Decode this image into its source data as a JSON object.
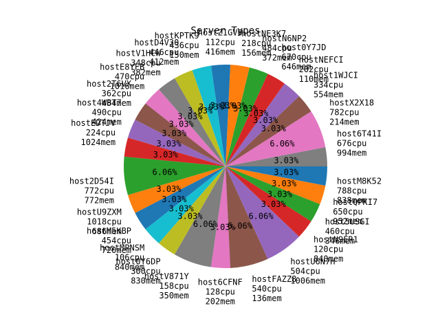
{
  "chart_data": {
    "type": "pie",
    "title": "Server Types",
    "start_angle_deg": 0,
    "direction": "counterclockwise",
    "slices": [
      {
        "label": "host6T41I",
        "cpu": "676cpu",
        "mem": "994mem",
        "pct": "3.03%",
        "value": 1,
        "color": "#7f7f7f"
      },
      {
        "label": "hostX2X18",
        "cpu": "782cpu",
        "mem": "214mem",
        "pct": "6.06%",
        "value": 2,
        "color": "#e377c2"
      },
      {
        "label": "host1WJCI",
        "cpu": "334cpu",
        "mem": "554mem",
        "pct": "3.03%",
        "value": 1,
        "color": "#8c564b"
      },
      {
        "label": "hostNEFCI",
        "cpu": "202cpu",
        "mem": "110mem",
        "pct": "3.03%",
        "value": 1,
        "color": "#9467bd"
      },
      {
        "label": "host0Y7JD",
        "cpu": "670cpu",
        "mem": "646mem",
        "pct": "3.03%",
        "value": 1,
        "color": "#d62728"
      },
      {
        "label": "hostN6NP2",
        "cpu": "484cpu",
        "mem": "372mem",
        "pct": "3.03%",
        "value": 1,
        "color": "#2ca02c"
      },
      {
        "label": "hostNE3K7",
        "cpu": "218cpu",
        "mem": "156mem",
        "pct": "3.03%",
        "value": 1,
        "color": "#ff7f0e"
      },
      {
        "label": "hostZ1GV0",
        "cpu": "112cpu",
        "mem": "416mem",
        "pct": "3.03%",
        "value": 1,
        "color": "#1f77b4"
      },
      {
        "label": "hostKPTK9",
        "cpu": "436cpu",
        "mem": "150mem",
        "pct": "3.03%",
        "value": 1,
        "color": "#17becf"
      },
      {
        "label": "hostD4V30",
        "cpu": "446cpu",
        "mem": "412mem",
        "pct": "3.03%",
        "value": 1,
        "color": "#bcbd22"
      },
      {
        "label": "hostV1HCW",
        "cpu": "348cpu",
        "mem": "382mem",
        "pct": "3.03%",
        "value": 1,
        "color": "#7f7f7f"
      },
      {
        "label": "hostE8YFB",
        "cpu": "470cpu",
        "mem": "1016mem",
        "pct": "3.03%",
        "value": 1,
        "color": "#e377c2"
      },
      {
        "label": "host2T6VX",
        "cpu": "362cpu",
        "mem": "484mem",
        "pct": "3.03%",
        "value": 1,
        "color": "#8c564b"
      },
      {
        "label": "host4WBT7",
        "cpu": "490cpu",
        "mem": "424mem",
        "pct": "3.03%",
        "value": 1,
        "color": "#9467bd"
      },
      {
        "label": "hostEDTJV",
        "cpu": "224cpu",
        "mem": "1024mem",
        "pct": "3.03%",
        "value": 1,
        "color": "#d62728"
      },
      {
        "label": "host2D54I",
        "cpu": "772cpu",
        "mem": "772mem",
        "pct": "6.06%",
        "value": 2,
        "color": "#2ca02c"
      },
      {
        "label": "hostU9ZXM",
        "cpu": "1018cpu",
        "mem": "686mem",
        "pct": "3.03%",
        "value": 1,
        "color": "#ff7f0e"
      },
      {
        "label": "hostM5KBP",
        "cpu": "454cpu",
        "mem": "720mem",
        "pct": "3.03%",
        "value": 1,
        "color": "#1f77b4"
      },
      {
        "label": "hostMPNSM",
        "cpu": "106cpu",
        "mem": "840mem",
        "pct": "3.03%",
        "value": 1,
        "color": "#17becf"
      },
      {
        "label": "host0Y6DP",
        "cpu": "300cpu",
        "mem": "830mem",
        "pct": "3.03%",
        "value": 1,
        "color": "#bcbd22"
      },
      {
        "label": "hostV871Y",
        "cpu": "158cpu",
        "mem": "350mem",
        "pct": "6.06%",
        "value": 2,
        "color": "#7f7f7f"
      },
      {
        "label": "host6CFNF",
        "cpu": "128cpu",
        "mem": "202mem",
        "pct": "3.03%",
        "value": 1,
        "color": "#e377c2"
      },
      {
        "label": "hostFAZZ8",
        "cpu": "540cpu",
        "mem": "136mem",
        "pct": "6.06%",
        "value": 2,
        "color": "#8c564b"
      },
      {
        "label": "hostU6N7H",
        "cpu": "504cpu",
        "mem": "1006mem",
        "pct": "6.06%",
        "value": 2,
        "color": "#9467bd"
      },
      {
        "label": "hostN9ER1",
        "cpu": "120cpu",
        "mem": "840mem",
        "pct": "3.03%",
        "value": 1,
        "color": "#d62728"
      },
      {
        "label": "host5USGI",
        "cpu": "460cpu",
        "mem": "346mem",
        "pct": "3.03%",
        "value": 1,
        "color": "#2ca02c"
      },
      {
        "label": "hostQPKI7",
        "cpu": "650cpu",
        "mem": "952mem",
        "pct": "3.03%",
        "value": 1,
        "color": "#ff7f0e"
      },
      {
        "label": "hostM8K52",
        "cpu": "788cpu",
        "mem": "838mem",
        "pct": "3.03%",
        "value": 1,
        "color": "#1f77b4"
      }
    ]
  }
}
